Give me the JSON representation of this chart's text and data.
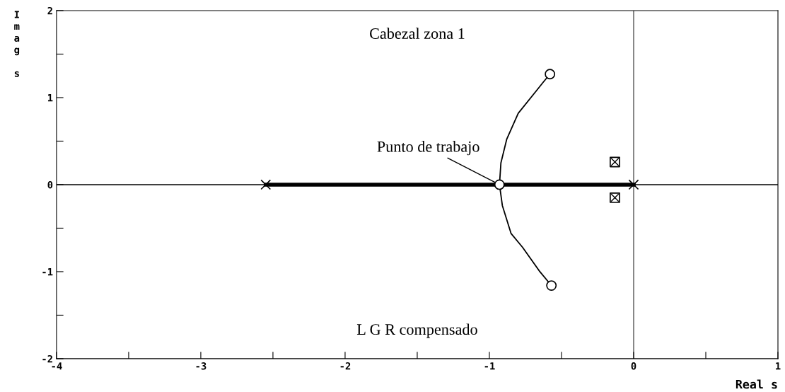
{
  "chart_data": {
    "type": "line",
    "title": "Cabezal zona 1",
    "xlabel": "Real s",
    "ylabel": "Imag s",
    "annotations": [
      {
        "text": "Punto de trabajo",
        "x": -0.93,
        "y": 0
      },
      "L G R compensado"
    ],
    "xlim": [
      -4,
      1
    ],
    "ylim": [
      -2,
      2
    ],
    "xticks": [
      -4,
      {
        "value": -3.5,
        "label": null
      },
      -3,
      {
        "value": -2.5,
        "label": null
      },
      -2,
      {
        "value": -1.5,
        "label": null
      },
      -1,
      {
        "value": -0.5,
        "label": null
      },
      0,
      {
        "value": 0.5,
        "label": null
      },
      1
    ],
    "yticks": [
      -2,
      {
        "value": -1.5,
        "label": null
      },
      -1,
      {
        "value": -0.5,
        "label": null
      },
      0,
      {
        "value": 0.5,
        "label": null
      },
      1,
      {
        "value": 1.5,
        "label": null
      },
      2
    ],
    "grid": false,
    "ref_lines": [
      {
        "axis": "y",
        "value": 0,
        "color": "#000000"
      },
      {
        "axis": "x",
        "value": 0,
        "color": "#555555"
      }
    ],
    "series": [
      {
        "color": "#000000",
        "x": [
          -2.55,
          0
        ],
        "values": [
          0,
          0
        ]
      },
      {
        "type": "line",
        "color": "#000000",
        "x": [
          -0.93,
          -0.92,
          -0.88,
          -0.8,
          -0.63,
          -0.58
        ],
        "values": [
          0,
          0.25,
          0.52,
          0.82,
          1.17,
          1.27
        ]
      },
      {
        "type": "line",
        "color": "#000000",
        "x": [
          -0.93,
          -0.91,
          -0.85,
          -0.77,
          -0.65,
          -0.57
        ],
        "values": [
          0,
          -0.24,
          -0.56,
          -0.72,
          -1.0,
          -1.16
        ]
      },
      {
        "type": "scatter",
        "marker": "circle",
        "color": "#000000",
        "x": [
          -0.58,
          -0.57,
          -0.93
        ],
        "values": [
          1.27,
          -1.16,
          0
        ]
      },
      {
        "type": "scatter",
        "marker": "square",
        "color": "#000000",
        "x": [
          -0.13,
          -0.13
        ],
        "values": [
          0.26,
          -0.15
        ]
      },
      {
        "type": "scatter",
        "marker": "cross",
        "color": "#000000",
        "x": [
          -2.55,
          0
        ],
        "values": [
          0,
          0
        ]
      }
    ]
  }
}
